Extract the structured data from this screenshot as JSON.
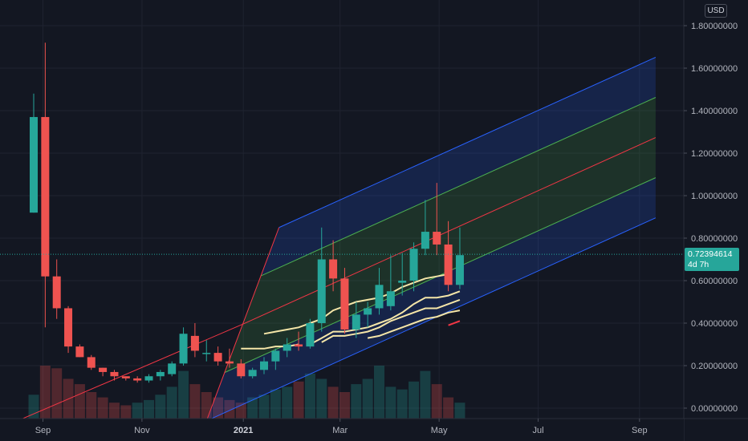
{
  "currency": "USD",
  "last_price": {
    "value": "0.72394614",
    "countdown": "4d 7h"
  },
  "chart_data": {
    "type": "candlestick",
    "y_axis": {
      "min": -0.05,
      "max": 1.85,
      "ticks": [
        "1.80000000",
        "1.60000000",
        "1.40000000",
        "1.20000000",
        "1.00000000",
        "0.80000000",
        "0.60000000",
        "0.40000000",
        "0.20000000",
        "0.00000000"
      ],
      "tick_values": [
        1.8,
        1.6,
        1.4,
        1.2,
        1.0,
        0.8,
        0.6,
        0.4,
        0.2,
        0.0
      ]
    },
    "x_axis": {
      "labels": [
        {
          "text": "Sep",
          "week": 0.8,
          "bold": false
        },
        {
          "text": "Nov",
          "week": 9.4,
          "bold": false
        },
        {
          "text": "2021",
          "week": 18.2,
          "bold": true
        },
        {
          "text": "Mar",
          "week": 26.6,
          "bold": false
        },
        {
          "text": "May",
          "week": 35.2,
          "bold": false
        },
        {
          "text": "Jul",
          "week": 43.8,
          "bold": false
        },
        {
          "text": "Sep",
          "week": 52.6,
          "bold": false
        }
      ]
    },
    "candles": [
      {
        "week": 0,
        "o": 0.92,
        "h": 1.48,
        "l": 0.92,
        "c": 1.37
      },
      {
        "week": 1,
        "o": 1.37,
        "h": 1.72,
        "l": 0.38,
        "c": 0.62
      },
      {
        "week": 2,
        "o": 0.62,
        "h": 0.7,
        "l": 0.42,
        "c": 0.47
      },
      {
        "week": 3,
        "o": 0.47,
        "h": 0.48,
        "l": 0.26,
        "c": 0.29
      },
      {
        "week": 4,
        "o": 0.29,
        "h": 0.3,
        "l": 0.24,
        "c": 0.24
      },
      {
        "week": 5,
        "o": 0.24,
        "h": 0.25,
        "l": 0.18,
        "c": 0.19
      },
      {
        "week": 6,
        "o": 0.19,
        "h": 0.19,
        "l": 0.15,
        "c": 0.17
      },
      {
        "week": 7,
        "o": 0.17,
        "h": 0.18,
        "l": 0.13,
        "c": 0.15
      },
      {
        "week": 8,
        "o": 0.15,
        "h": 0.15,
        "l": 0.13,
        "c": 0.14
      },
      {
        "week": 9,
        "o": 0.14,
        "h": 0.15,
        "l": 0.12,
        "c": 0.13
      },
      {
        "week": 10,
        "o": 0.13,
        "h": 0.16,
        "l": 0.12,
        "c": 0.15
      },
      {
        "week": 11,
        "o": 0.15,
        "h": 0.18,
        "l": 0.13,
        "c": 0.17
      },
      {
        "week": 12,
        "o": 0.16,
        "h": 0.22,
        "l": 0.15,
        "c": 0.21
      },
      {
        "week": 13,
        "o": 0.21,
        "h": 0.38,
        "l": 0.2,
        "c": 0.35
      },
      {
        "week": 14,
        "o": 0.34,
        "h": 0.4,
        "l": 0.24,
        "c": 0.27
      },
      {
        "week": 15,
        "o": 0.26,
        "h": 0.32,
        "l": 0.22,
        "c": 0.26
      },
      {
        "week": 16,
        "o": 0.26,
        "h": 0.29,
        "l": 0.2,
        "c": 0.22
      },
      {
        "week": 17,
        "o": 0.22,
        "h": 0.28,
        "l": 0.19,
        "c": 0.21
      },
      {
        "week": 18,
        "o": 0.21,
        "h": 0.23,
        "l": 0.14,
        "c": 0.15
      },
      {
        "week": 19,
        "o": 0.15,
        "h": 0.19,
        "l": 0.14,
        "c": 0.18
      },
      {
        "week": 20,
        "o": 0.18,
        "h": 0.24,
        "l": 0.16,
        "c": 0.22
      },
      {
        "week": 21,
        "o": 0.22,
        "h": 0.28,
        "l": 0.18,
        "c": 0.27
      },
      {
        "week": 22,
        "o": 0.27,
        "h": 0.33,
        "l": 0.24,
        "c": 0.3
      },
      {
        "week": 23,
        "o": 0.3,
        "h": 0.36,
        "l": 0.27,
        "c": 0.29
      },
      {
        "week": 24,
        "o": 0.29,
        "h": 0.42,
        "l": 0.28,
        "c": 0.4
      },
      {
        "week": 25,
        "o": 0.4,
        "h": 0.85,
        "l": 0.36,
        "c": 0.7
      },
      {
        "week": 26,
        "o": 0.7,
        "h": 0.79,
        "l": 0.55,
        "c": 0.61
      },
      {
        "week": 27,
        "o": 0.61,
        "h": 0.66,
        "l": 0.35,
        "c": 0.37
      },
      {
        "week": 28,
        "o": 0.37,
        "h": 0.5,
        "l": 0.33,
        "c": 0.44
      },
      {
        "week": 29,
        "o": 0.44,
        "h": 0.5,
        "l": 0.38,
        "c": 0.47
      },
      {
        "week": 30,
        "o": 0.47,
        "h": 0.66,
        "l": 0.44,
        "c": 0.58
      },
      {
        "week": 31,
        "o": 0.48,
        "h": 0.72,
        "l": 0.46,
        "c": 0.55
      },
      {
        "week": 32,
        "o": 0.59,
        "h": 0.73,
        "l": 0.53,
        "c": 0.6
      },
      {
        "week": 33,
        "o": 0.6,
        "h": 0.78,
        "l": 0.55,
        "c": 0.75
      },
      {
        "week": 34,
        "o": 0.75,
        "h": 0.98,
        "l": 0.72,
        "c": 0.83
      },
      {
        "week": 35,
        "o": 0.83,
        "h": 1.06,
        "l": 0.72,
        "c": 0.77
      },
      {
        "week": 36,
        "o": 0.77,
        "h": 0.88,
        "l": 0.55,
        "c": 0.58
      },
      {
        "week": 37,
        "o": 0.58,
        "h": 0.85,
        "l": 0.56,
        "c": 0.72
      }
    ],
    "volumes": [
      {
        "week": 0,
        "v": 0.09,
        "up": true
      },
      {
        "week": 1,
        "v": 0.2,
        "up": false
      },
      {
        "week": 2,
        "v": 0.19,
        "up": false
      },
      {
        "week": 3,
        "v": 0.15,
        "up": false
      },
      {
        "week": 4,
        "v": 0.13,
        "up": false
      },
      {
        "week": 5,
        "v": 0.1,
        "up": false
      },
      {
        "week": 6,
        "v": 0.08,
        "up": false
      },
      {
        "week": 7,
        "v": 0.06,
        "up": false
      },
      {
        "week": 8,
        "v": 0.05,
        "up": false
      },
      {
        "week": 9,
        "v": 0.06,
        "up": true
      },
      {
        "week": 10,
        "v": 0.07,
        "up": true
      },
      {
        "week": 11,
        "v": 0.09,
        "up": true
      },
      {
        "week": 12,
        "v": 0.12,
        "up": true
      },
      {
        "week": 13,
        "v": 0.18,
        "up": true
      },
      {
        "week": 14,
        "v": 0.13,
        "up": false
      },
      {
        "week": 15,
        "v": 0.1,
        "up": false
      },
      {
        "week": 16,
        "v": 0.08,
        "up": false
      },
      {
        "week": 17,
        "v": 0.07,
        "up": false
      },
      {
        "week": 18,
        "v": 0.06,
        "up": false
      },
      {
        "week": 19,
        "v": 0.08,
        "up": true
      },
      {
        "week": 20,
        "v": 0.09,
        "up": true
      },
      {
        "week": 21,
        "v": 0.11,
        "up": true
      },
      {
        "week": 22,
        "v": 0.12,
        "up": true
      },
      {
        "week": 23,
        "v": 0.14,
        "up": false
      },
      {
        "week": 24,
        "v": 0.17,
        "up": true
      },
      {
        "week": 25,
        "v": 0.15,
        "up": true
      },
      {
        "week": 26,
        "v": 0.12,
        "up": false
      },
      {
        "week": 27,
        "v": 0.1,
        "up": false
      },
      {
        "week": 28,
        "v": 0.13,
        "up": true
      },
      {
        "week": 29,
        "v": 0.15,
        "up": true
      },
      {
        "week": 30,
        "v": 0.2,
        "up": true
      },
      {
        "week": 31,
        "v": 0.12,
        "up": true
      },
      {
        "week": 32,
        "v": 0.11,
        "up": true
      },
      {
        "week": 33,
        "v": 0.14,
        "up": true
      },
      {
        "week": 34,
        "v": 0.18,
        "up": true
      },
      {
        "week": 35,
        "v": 0.13,
        "up": false
      },
      {
        "week": 36,
        "v": 0.08,
        "up": false
      },
      {
        "week": 37,
        "v": 0.06,
        "up": true
      }
    ],
    "ma_lines": [
      {
        "color": "#f5e6a8",
        "points": [
          [
            18,
            0.28
          ],
          [
            19,
            0.28
          ],
          [
            20,
            0.28
          ],
          [
            21,
            0.29
          ],
          [
            22,
            0.29
          ],
          [
            23,
            0.3
          ]
        ]
      },
      {
        "color": "#f5e6a8",
        "points": [
          [
            20,
            0.35
          ],
          [
            21,
            0.36
          ],
          [
            22,
            0.37
          ],
          [
            23,
            0.38
          ],
          [
            24,
            0.4
          ],
          [
            25,
            0.42
          ],
          [
            26,
            0.46
          ],
          [
            27,
            0.48
          ],
          [
            28,
            0.5
          ],
          [
            29,
            0.51
          ],
          [
            30,
            0.52
          ],
          [
            31,
            0.54
          ],
          [
            32,
            0.57
          ],
          [
            33,
            0.59
          ],
          [
            34,
            0.61
          ],
          [
            35,
            0.62
          ],
          [
            36,
            0.63
          ]
        ]
      },
      {
        "color": "#f5e6a8",
        "points": [
          [
            24,
            0.3
          ],
          [
            25,
            0.33
          ],
          [
            26,
            0.36
          ],
          [
            27,
            0.36
          ],
          [
            28,
            0.37
          ],
          [
            29,
            0.38
          ],
          [
            30,
            0.4
          ],
          [
            31,
            0.42
          ],
          [
            32,
            0.45
          ],
          [
            33,
            0.49
          ],
          [
            34,
            0.52
          ],
          [
            35,
            0.52
          ],
          [
            36,
            0.53
          ],
          [
            37,
            0.55
          ]
        ]
      },
      {
        "color": "#f5e6a8",
        "points": [
          [
            25,
            0.31
          ],
          [
            26,
            0.34
          ],
          [
            27,
            0.34
          ],
          [
            28,
            0.35
          ],
          [
            29,
            0.36
          ],
          [
            30,
            0.38
          ],
          [
            31,
            0.41
          ],
          [
            32,
            0.43
          ],
          [
            33,
            0.45
          ],
          [
            34,
            0.47
          ],
          [
            35,
            0.47
          ],
          [
            36,
            0.49
          ],
          [
            37,
            0.51
          ]
        ]
      },
      {
        "color": "#f5e6a8",
        "points": [
          [
            29,
            0.33
          ],
          [
            30,
            0.34
          ],
          [
            31,
            0.36
          ],
          [
            32,
            0.38
          ],
          [
            33,
            0.4
          ],
          [
            34,
            0.42
          ],
          [
            35,
            0.43
          ],
          [
            36,
            0.45
          ],
          [
            37,
            0.46
          ]
        ]
      }
    ],
    "small_red_mark": {
      "week_from": 36.0,
      "week_to": 37.0,
      "y_from": 0.39,
      "y_to": 0.41
    },
    "pitchfork": {
      "origin": {
        "week": 15.0,
        "y": -0.06
      },
      "hi_anchor": {
        "week": 21.3,
        "y": 0.85
      },
      "lo_anchor": {
        "week": 15.0,
        "y": -0.06
      },
      "end_week": 54.0,
      "slope": 0.0245,
      "bands": [
        {
          "offset": 0.0,
          "color": "#2962ff"
        },
        {
          "offset": 0.25,
          "color": "#4caf50"
        },
        {
          "offset": 0.5,
          "color": "#f23645"
        },
        {
          "offset": 0.75,
          "color": "#4caf50"
        },
        {
          "offset": 1.0,
          "color": "#2962ff"
        }
      ],
      "upper_top_at_anchor": 0.85,
      "lower_bottom_at_anchor": -0.06,
      "median_line": {
        "from_week": -4.0,
        "from_y": -0.12
      }
    }
  }
}
